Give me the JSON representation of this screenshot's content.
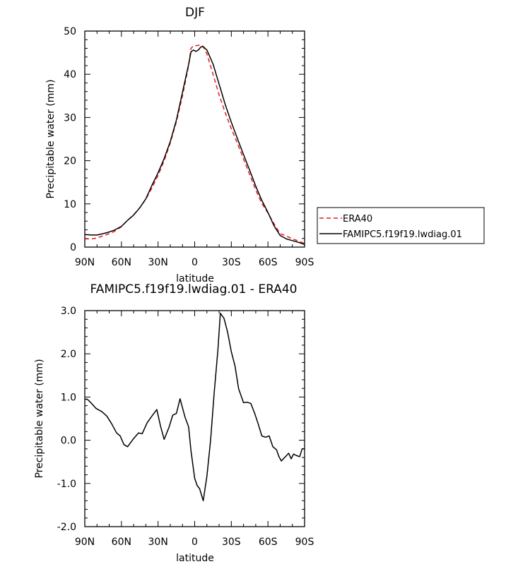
{
  "chart_data": [
    {
      "type": "line",
      "title": "DJF",
      "xlabel": "latitude",
      "ylabel": "Precipitable water (mm)",
      "x_reversed_note": "",
      "xlim": [
        -90,
        90
      ],
      "ylim": [
        0,
        50
      ],
      "xticks": [
        -90,
        -60,
        -30,
        0,
        30,
        60,
        90
      ],
      "xtick_labels": [
        "90N",
        "60N",
        "30N",
        "0",
        "30S",
        "60S",
        "90S"
      ],
      "yticks": [
        0,
        10,
        20,
        30,
        40,
        50
      ],
      "ytick_labels": [
        "0",
        "10",
        "20",
        "30",
        "40",
        "50"
      ],
      "legend_position": "right",
      "series": [
        {
          "name": "ERA40",
          "color": "#e8191e",
          "dash": "dashed",
          "x": [
            -90,
            -84,
            -80,
            -75,
            -70,
            -66,
            -60,
            -55,
            -50,
            -45,
            -40,
            -35,
            -30,
            -25,
            -20,
            -15,
            -10,
            -5,
            -3,
            -1,
            1,
            3,
            5,
            7,
            10,
            15,
            20,
            25,
            30,
            35,
            40,
            45,
            50,
            55,
            60,
            65,
            70,
            75,
            80,
            85,
            90
          ],
          "y": [
            1.9,
            1.9,
            2.1,
            2.6,
            3.1,
            3.6,
            4.7,
            6.2,
            7.5,
            9.1,
            11.1,
            13.7,
            16.6,
            20.0,
            24.1,
            29.0,
            35.0,
            42.0,
            46.0,
            46.6,
            46.6,
            46.7,
            46.8,
            46.4,
            44.7,
            40.0,
            35.2,
            31.1,
            27.4,
            24.0,
            20.4,
            16.8,
            13.2,
            10.1,
            7.9,
            5.4,
            3.1,
            2.6,
            1.9,
            1.4,
            0.8
          ]
        },
        {
          "name": "FAMIPC5.f19f19.lwdiag.01",
          "color": "#000000",
          "dash": "solid",
          "x": [
            -90,
            -84,
            -80,
            -75,
            -70,
            -66,
            -60,
            -55,
            -50,
            -45,
            -40,
            -35,
            -30,
            -25,
            -20,
            -15,
            -10,
            -5,
            -3,
            -1,
            1,
            3,
            5,
            7,
            10,
            15,
            20,
            25,
            30,
            35,
            40,
            45,
            50,
            55,
            60,
            65,
            70,
            75,
            80,
            85,
            90
          ],
          "y": [
            2.9,
            2.8,
            2.8,
            3.1,
            3.5,
            3.9,
            4.8,
            6.2,
            7.4,
            9.1,
            11.2,
            14.3,
            17.2,
            20.5,
            24.4,
            29.4,
            35.8,
            42.3,
            45.2,
            45.6,
            45.3,
            45.6,
            46.3,
            46.4,
            45.6,
            42.4,
            37.7,
            33.0,
            28.9,
            25.1,
            21.4,
            17.8,
            14.1,
            10.8,
            8.0,
            4.9,
            2.7,
            1.9,
            1.5,
            1.1,
            0.6
          ]
        }
      ]
    },
    {
      "type": "line",
      "title": "FAMIPC5.f19f19.lwdiag.01 - ERA40",
      "xlabel": "latitude",
      "ylabel": "Precipitable water (mm)",
      "xlim": [
        -90,
        90
      ],
      "ylim": [
        -2.0,
        3.0
      ],
      "xticks": [
        -90,
        -60,
        -30,
        0,
        30,
        60,
        90
      ],
      "xtick_labels": [
        "90N",
        "60N",
        "30N",
        "0",
        "30S",
        "60S",
        "90S"
      ],
      "yticks": [
        -2,
        -1,
        0,
        1,
        2,
        3
      ],
      "ytick_labels": [
        "-2.0",
        "-1.0",
        "0.0",
        "1.0",
        "2.0",
        "3.0"
      ],
      "series": [
        {
          "name": "",
          "color": "#000000",
          "dash": "solid",
          "x": [
            -90,
            -88,
            -85,
            -81,
            -76,
            -72,
            -68,
            -64,
            -61,
            -58,
            -55,
            -50,
            -46,
            -43,
            -39,
            -35,
            -31,
            -28,
            -25,
            -21,
            -18,
            -15,
            -12,
            -8,
            -5,
            -3,
            0,
            2,
            4,
            7,
            10,
            13,
            16,
            19,
            21,
            24,
            27,
            30,
            33,
            36,
            40,
            43,
            46,
            49,
            52,
            55,
            58,
            61,
            64,
            67,
            69,
            71,
            73,
            75,
            77,
            79,
            81,
            83,
            86,
            88,
            90
          ],
          "y": [
            0.95,
            0.95,
            0.87,
            0.74,
            0.66,
            0.56,
            0.38,
            0.17,
            0.1,
            -0.1,
            -0.15,
            0.04,
            0.17,
            0.15,
            0.4,
            0.56,
            0.71,
            0.33,
            0.02,
            0.3,
            0.58,
            0.62,
            0.96,
            0.54,
            0.31,
            -0.25,
            -0.88,
            -1.05,
            -1.12,
            -1.4,
            -0.83,
            0.0,
            1.1,
            2.08,
            2.94,
            2.82,
            2.5,
            2.05,
            1.72,
            1.19,
            0.87,
            0.88,
            0.85,
            0.63,
            0.38,
            0.1,
            0.07,
            0.1,
            -0.15,
            -0.22,
            -0.38,
            -0.48,
            -0.42,
            -0.36,
            -0.3,
            -0.43,
            -0.32,
            -0.35,
            -0.38,
            -0.2,
            -0.2
          ]
        }
      ]
    }
  ]
}
